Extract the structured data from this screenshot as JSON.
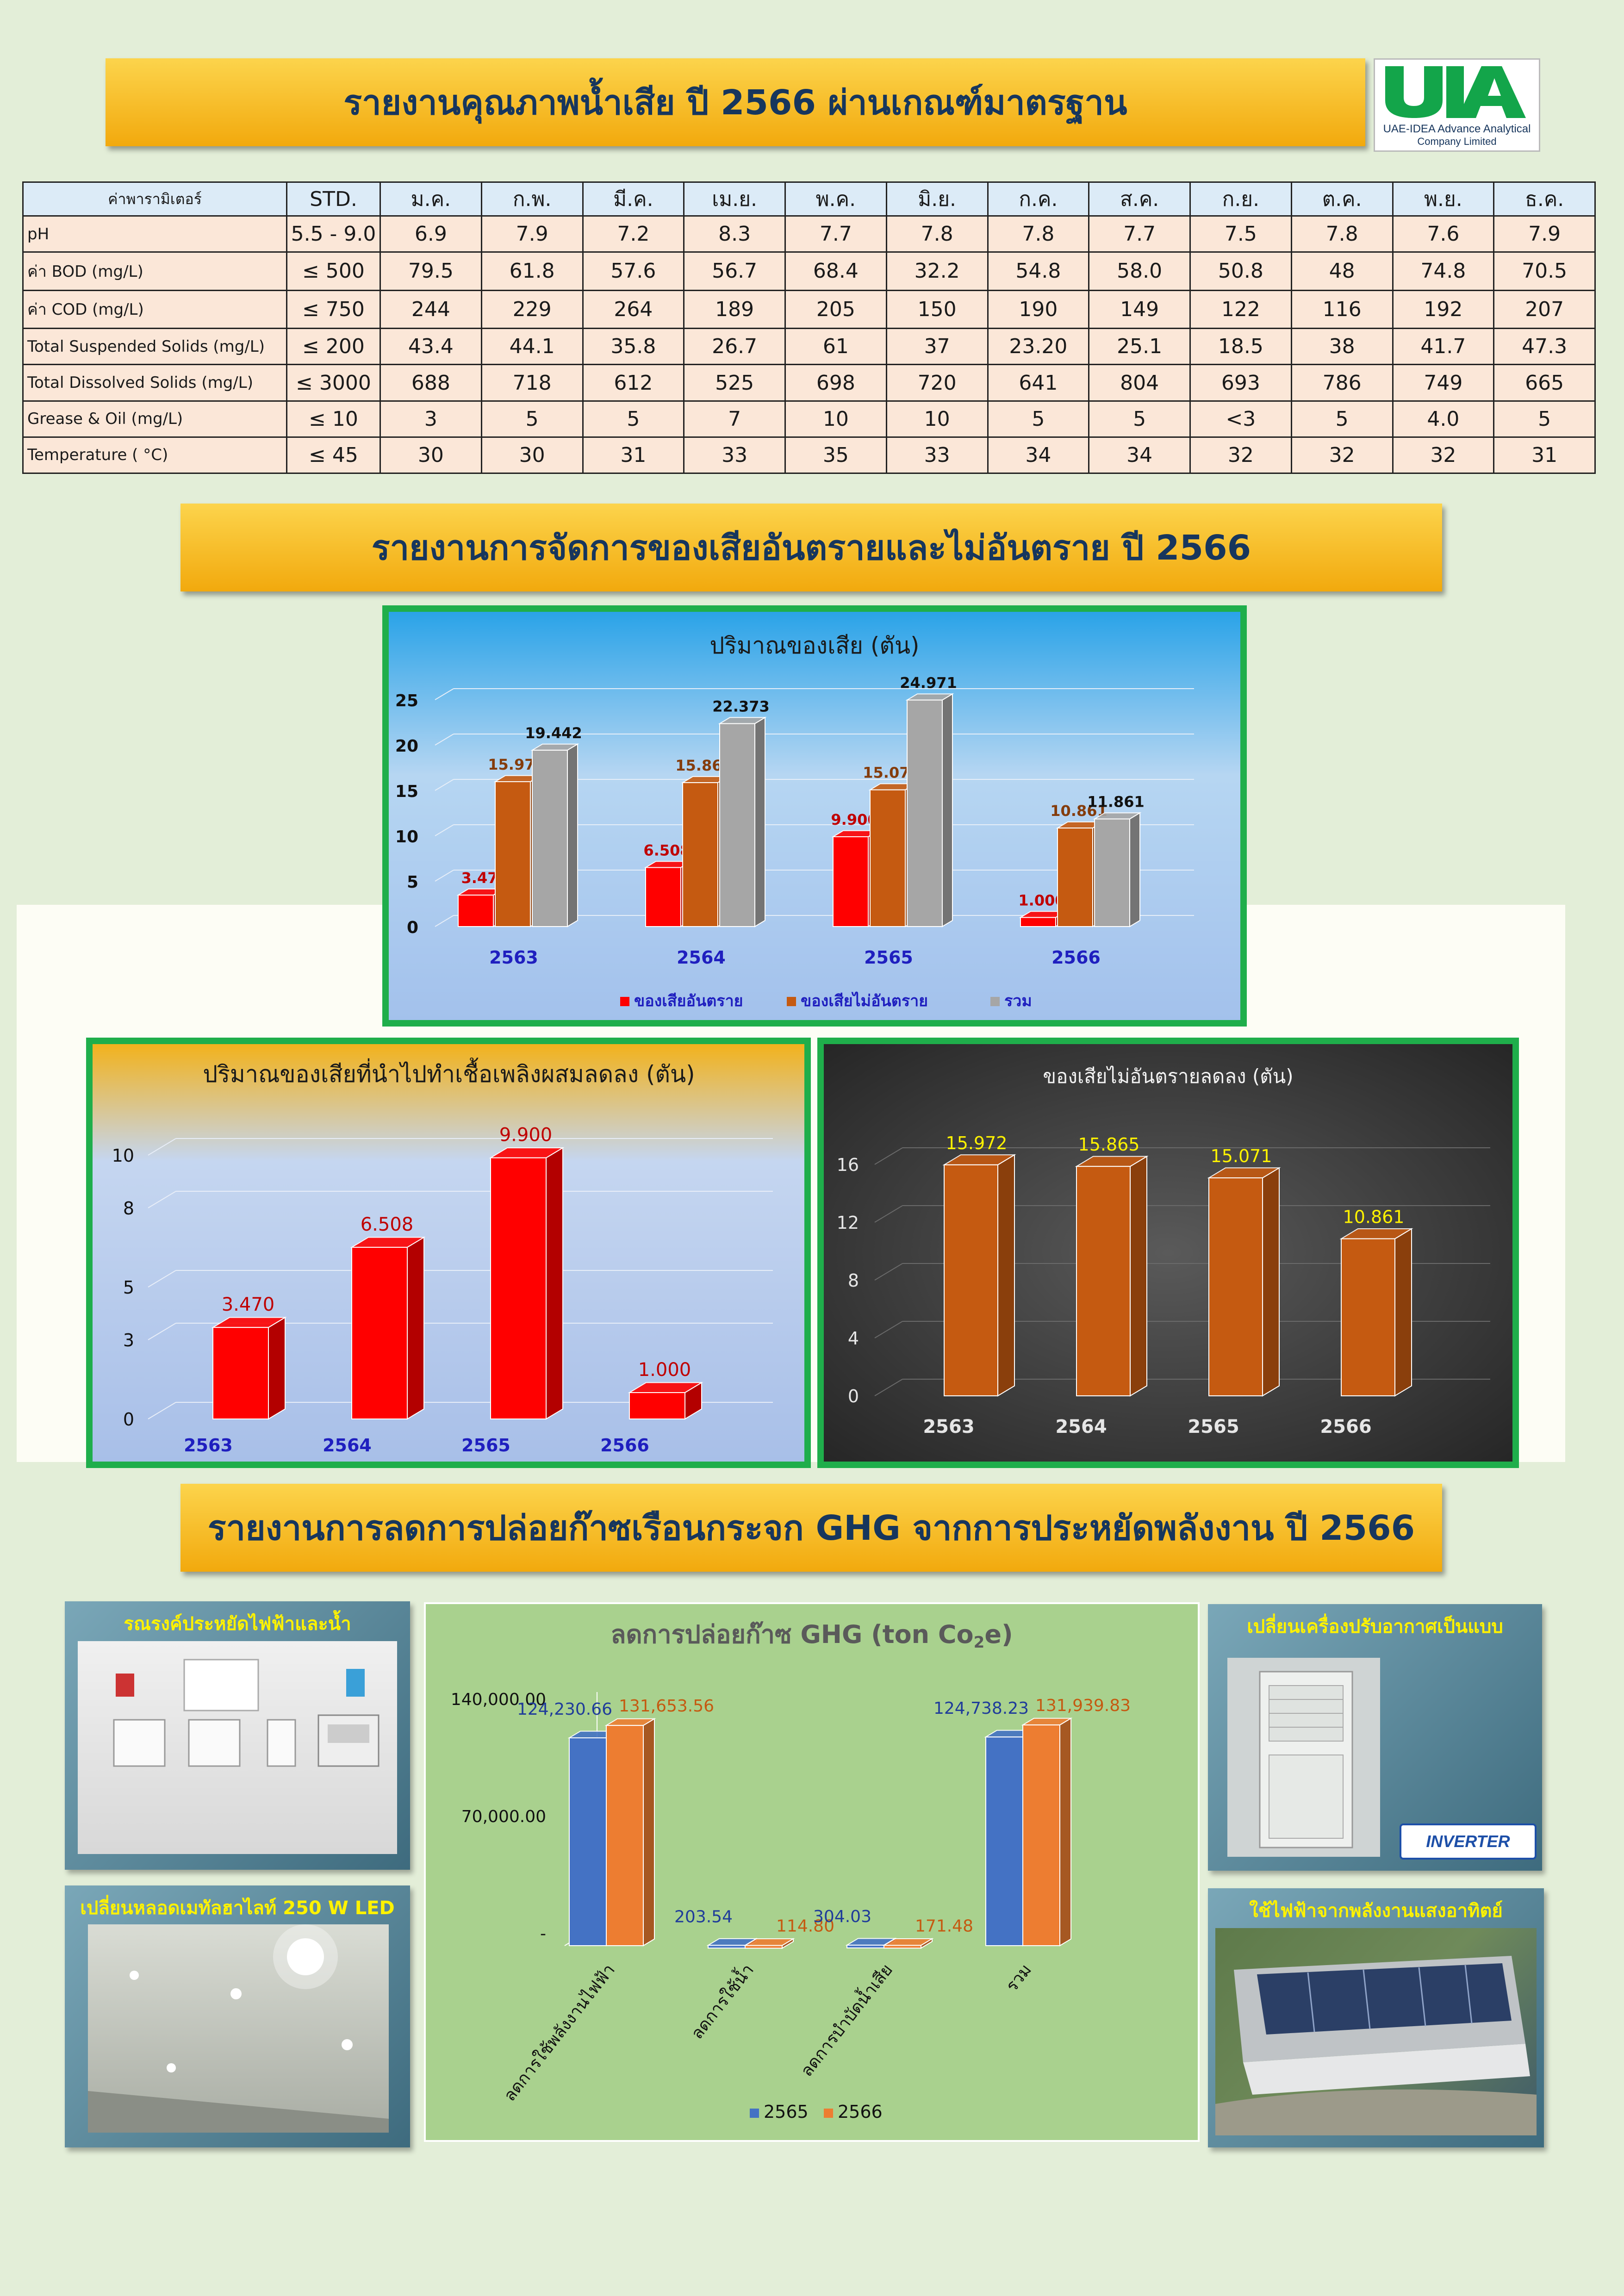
{
  "title1": "รายงานคุณภาพน้ำเสีย ปี 2566 ผ่านเกณฑ์มาตรฐาน",
  "logo": {
    "text": "UIA",
    "name": "UAE-IDEA Advance Analytical",
    "sub": "Company Limited"
  },
  "table": {
    "headers": [
      "ค่าพารามิเตอร์",
      "STD.",
      "ม.ค.",
      "ก.พ.",
      "มี.ค.",
      "เม.ย.",
      "พ.ค.",
      "มิ.ย.",
      "ก.ค.",
      "ส.ค.",
      "ก.ย.",
      "ต.ค.",
      "พ.ย.",
      "ธ.ค."
    ],
    "rows": [
      [
        "pH",
        "5.5 - 9.0",
        "6.9",
        "7.9",
        "7.2",
        "8.3",
        "7.7",
        "7.8",
        "7.8",
        "7.7",
        "7.5",
        "7.8",
        "7.6",
        "7.9"
      ],
      [
        "ค่า BOD (mg/L)",
        "≤ 500",
        "79.5",
        "61.8",
        "57.6",
        "56.7",
        "68.4",
        "32.2",
        "54.8",
        "58.0",
        "50.8",
        "48",
        "74.8",
        "70.5"
      ],
      [
        "ค่า COD (mg/L)",
        "≤ 750",
        "244",
        "229",
        "264",
        "189",
        "205",
        "150",
        "190",
        "149",
        "122",
        "116",
        "192",
        "207"
      ],
      [
        "Total Suspended Solids (mg/L)",
        "≤ 200",
        "43.4",
        "44.1",
        "35.8",
        "26.7",
        "61",
        "37",
        "23.20",
        "25.1",
        "18.5",
        "38",
        "41.7",
        "47.3"
      ],
      [
        "Total Dissolved Solids (mg/L)",
        "≤ 3000",
        "688",
        "718",
        "612",
        "525",
        "698",
        "720",
        "641",
        "804",
        "693",
        "786",
        "749",
        "665"
      ],
      [
        "Grease & Oil (mg/L)",
        "≤ 10",
        "3",
        "5",
        "5",
        "7",
        "10",
        "10",
        "5",
        "5",
        "<3",
        "5",
        "4.0",
        "5"
      ],
      [
        "Temperature ( °C)",
        "≤ 45",
        "30",
        "30",
        "31",
        "33",
        "35",
        "33",
        "34",
        "34",
        "32",
        "32",
        "32",
        "31"
      ]
    ]
  },
  "title2": "รายงานการจัดการของเสียอันตรายและไม่อันตราย ปี 2566",
  "title3": "รายงานการลดการปล่อยก๊าซเรือนกระจก GHG จากการประหยัดพลังงาน ปี 2566",
  "colors": {
    "red": "#ff0000",
    "orange": "#c55a11",
    "gray": "#a6a6a6",
    "blue": "#4472c4",
    "orange2": "#ed7d31",
    "yellow": "#fff200",
    "navy": "#1f1fbf"
  },
  "chart_data": [
    {
      "type": "bar",
      "title": "ปริมาณของเสีย (ตัน)",
      "categories": [
        "2563",
        "2564",
        "2565",
        "2566"
      ],
      "series": [
        {
          "name": "ของเสียอันตราย",
          "values": [
            3.47,
            6.508,
            9.9,
            1.0
          ],
          "labels": [
            "3.47",
            "6.508",
            "9.900",
            "1.000"
          ]
        },
        {
          "name": "ของเสียไม่อันตราย",
          "values": [
            15.972,
            15.865,
            15.071,
            10.861
          ],
          "labels": [
            "15.972",
            "15.865",
            "15.071",
            "10.861"
          ]
        },
        {
          "name": "รวม",
          "values": [
            19.442,
            22.373,
            24.971,
            11.861
          ],
          "labels": [
            "19.442",
            "22.373",
            "24.971",
            "11.861"
          ]
        }
      ],
      "yticks": [
        "0",
        "5",
        "10",
        "15",
        "20",
        "25"
      ],
      "ylim": [
        0,
        25
      ],
      "legend": "bottom"
    },
    {
      "type": "bar",
      "title": "ปริมาณของเสียที่นำไปทำเชื้อเพลิงผสมลดลง (ตัน)",
      "categories": [
        "2563",
        "2564",
        "2565",
        "2566"
      ],
      "values": [
        3.47,
        6.508,
        9.9,
        1.0
      ],
      "labels": [
        "3.470",
        "6.508",
        "9.900",
        "1.000"
      ],
      "yticks": [
        "0",
        "3",
        "5",
        "8",
        "10"
      ],
      "ylim": [
        0,
        10
      ]
    },
    {
      "type": "bar",
      "title": "ของเสียไม่อันตรายลดลง (ตัน)",
      "categories": [
        "2563",
        "2564",
        "2565",
        "2566"
      ],
      "values": [
        15.972,
        15.865,
        15.071,
        10.861
      ],
      "labels": [
        "15.972",
        "15.865",
        "15.071",
        "10.861"
      ],
      "yticks": [
        "0",
        "4",
        "8",
        "12",
        "16"
      ],
      "ylim": [
        0,
        16
      ]
    },
    {
      "type": "bar",
      "title_main": "ลดการปล่อยก๊าซ GHG (ton Co",
      "title_sub": "2",
      "title_end": "e)",
      "categories": [
        "ลดการใช้พลังงานไฟฟ้า",
        "ลดการใช้น้ำ",
        "ลดการบำบัดน้ำเสีย",
        "รวม"
      ],
      "series": [
        {
          "name": "2565",
          "values": [
            124230.66,
            203.54,
            304.03,
            124738.23
          ],
          "labels": [
            "124,230.66",
            "203.54",
            "304.03",
            "124,738.23"
          ]
        },
        {
          "name": "2566",
          "values": [
            131653.56,
            114.8,
            171.48,
            131939.83
          ],
          "labels": [
            "131,653.56",
            "114.80",
            "171.48",
            "131,939.83"
          ]
        }
      ],
      "yticks": [
        "-",
        "70,000.00",
        "140,000.00"
      ],
      "ylim": [
        0,
        140000
      ],
      "legend": "bottom"
    }
  ],
  "photos": [
    {
      "caption": "รณรงค์ประหยัดไฟฟ้าและน้ำ",
      "icon": "switch-panel-icon"
    },
    {
      "caption": "เปลี่ยนหลอดเมทัลฮาไลท์ 250 W LED",
      "icon": "ceiling-lights-icon"
    },
    {
      "caption": "เปลี่ยนเครื่องปรับอากาศเป็นแบบ",
      "icon": "inverter-aircon-icon",
      "badge": "INVERTER"
    },
    {
      "caption": "ใช้ไฟฟ้าจากพลังงานแสงอาทิตย์",
      "icon": "solar-roof-icon"
    }
  ]
}
